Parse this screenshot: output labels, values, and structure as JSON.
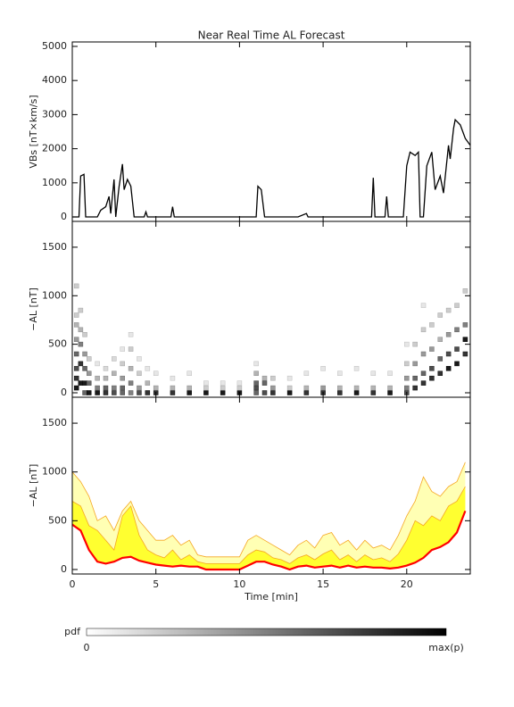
{
  "chart_data": [
    {
      "type": "line",
      "title": "Near Real Time AL Forecast",
      "y_label": "VBs [nT×km/s]",
      "color": "#000000",
      "x": [
        0,
        0.4,
        0.5,
        0.7,
        0.8,
        1.5,
        1.7,
        2,
        2.2,
        2.3,
        2.5,
        2.6,
        2.8,
        3,
        3.1,
        3.3,
        3.5,
        3.7,
        4.3,
        4.4,
        4.5,
        5.9,
        6,
        6.1,
        11,
        11.1,
        11.3,
        11.5,
        13.5,
        14,
        14.1,
        17.9,
        18,
        18.1,
        18.7,
        18.8,
        18.9,
        19.8,
        20,
        20.2,
        20.5,
        20.7,
        20.8,
        21,
        21.2,
        21.5,
        21.7,
        22,
        22.2,
        22.5,
        22.6,
        22.8,
        22.9,
        23.2,
        23.5,
        23.8
      ],
      "values": [
        0,
        0,
        1200,
        1250,
        0,
        0,
        200,
        300,
        600,
        100,
        1100,
        0,
        900,
        1550,
        800,
        1100,
        900,
        0,
        0,
        150,
        0,
        0,
        300,
        0,
        0,
        900,
        800,
        0,
        0,
        100,
        0,
        0,
        1150,
        0,
        0,
        600,
        0,
        0,
        1500,
        1900,
        1800,
        1900,
        0,
        0,
        1500,
        1900,
        800,
        1200,
        700,
        2100,
        1700,
        2600,
        2850,
        2700,
        2300,
        2100
      ],
      "xlim": [
        0,
        23.8
      ],
      "ylim": [
        -130,
        5130
      ],
      "yticks": [
        0,
        1000,
        2000,
        3000,
        4000,
        5000
      ]
    },
    {
      "type": "heatmap",
      "y_label": "−AL [nT]",
      "xlim": [
        0,
        23.8
      ],
      "ylim": [
        -46,
        1766
      ],
      "yticks": [
        0,
        500,
        1000,
        1500
      ],
      "cells": [
        [
          0.25,
          50,
          0.9
        ],
        [
          0.25,
          150,
          0.8
        ],
        [
          0.25,
          250,
          0.7
        ],
        [
          0.25,
          400,
          0.6
        ],
        [
          0.25,
          550,
          0.4
        ],
        [
          0.25,
          700,
          0.3
        ],
        [
          0.25,
          800,
          0.2
        ],
        [
          0.25,
          1100,
          0.2
        ],
        [
          0.5,
          100,
          0.9
        ],
        [
          0.5,
          300,
          0.8
        ],
        [
          0.5,
          500,
          0.5
        ],
        [
          0.5,
          650,
          0.3
        ],
        [
          0.5,
          850,
          0.2
        ],
        [
          0.75,
          0,
          0.6
        ],
        [
          0.75,
          100,
          0.9
        ],
        [
          0.75,
          250,
          0.6
        ],
        [
          0.75,
          400,
          0.4
        ],
        [
          0.75,
          600,
          0.2
        ],
        [
          1,
          0,
          0.9
        ],
        [
          1,
          100,
          0.6
        ],
        [
          1,
          200,
          0.4
        ],
        [
          1,
          350,
          0.2
        ],
        [
          1.5,
          0,
          0.9
        ],
        [
          1.5,
          50,
          0.5
        ],
        [
          1.5,
          150,
          0.3
        ],
        [
          1.5,
          300,
          0.1
        ],
        [
          2,
          0,
          0.8
        ],
        [
          2,
          50,
          0.6
        ],
        [
          2,
          150,
          0.3
        ],
        [
          2,
          250,
          0.15
        ],
        [
          2.5,
          0,
          0.7
        ],
        [
          2.5,
          50,
          0.5
        ],
        [
          2.5,
          200,
          0.3
        ],
        [
          2.5,
          350,
          0.15
        ],
        [
          3,
          0,
          0.6
        ],
        [
          3,
          50,
          0.6
        ],
        [
          3,
          150,
          0.4
        ],
        [
          3,
          300,
          0.2
        ],
        [
          3,
          450,
          0.1
        ],
        [
          3.5,
          0,
          0.5
        ],
        [
          3.5,
          100,
          0.5
        ],
        [
          3.5,
          250,
          0.3
        ],
        [
          3.5,
          450,
          0.2
        ],
        [
          3.5,
          600,
          0.1
        ],
        [
          4,
          0,
          0.7
        ],
        [
          4,
          50,
          0.4
        ],
        [
          4,
          200,
          0.2
        ],
        [
          4,
          350,
          0.1
        ],
        [
          4.5,
          0,
          0.8
        ],
        [
          4.5,
          100,
          0.3
        ],
        [
          4.5,
          250,
          0.1
        ],
        [
          5,
          0,
          0.8
        ],
        [
          5,
          50,
          0.3
        ],
        [
          5,
          200,
          0.1
        ],
        [
          6,
          0,
          0.8
        ],
        [
          6,
          50,
          0.3
        ],
        [
          6,
          150,
          0.1
        ],
        [
          7,
          0,
          0.9
        ],
        [
          7,
          50,
          0.3
        ],
        [
          7,
          200,
          0.1
        ],
        [
          8,
          0,
          0.9
        ],
        [
          8,
          50,
          0.2
        ],
        [
          8,
          100,
          0.1
        ],
        [
          9,
          0,
          0.9
        ],
        [
          9,
          50,
          0.2
        ],
        [
          9,
          100,
          0.1
        ],
        [
          10,
          0,
          0.9
        ],
        [
          10,
          50,
          0.2
        ],
        [
          10,
          100,
          0.1
        ],
        [
          11,
          0,
          0.6
        ],
        [
          11,
          50,
          0.7
        ],
        [
          11,
          100,
          0.6
        ],
        [
          11,
          200,
          0.3
        ],
        [
          11,
          300,
          0.1
        ],
        [
          11.5,
          0,
          0.7
        ],
        [
          11.5,
          100,
          0.6
        ],
        [
          11.5,
          150,
          0.3
        ],
        [
          12,
          0,
          0.8
        ],
        [
          12,
          50,
          0.4
        ],
        [
          12,
          150,
          0.2
        ],
        [
          13,
          0,
          0.9
        ],
        [
          13,
          50,
          0.2
        ],
        [
          13,
          150,
          0.1
        ],
        [
          14,
          0,
          0.8
        ],
        [
          14,
          50,
          0.3
        ],
        [
          14,
          200,
          0.1
        ],
        [
          15,
          0,
          0.8
        ],
        [
          15,
          50,
          0.4
        ],
        [
          15,
          250,
          0.1
        ],
        [
          16,
          0,
          0.8
        ],
        [
          16,
          50,
          0.3
        ],
        [
          16,
          200,
          0.1
        ],
        [
          17,
          0,
          0.9
        ],
        [
          17,
          50,
          0.3
        ],
        [
          17,
          250,
          0.1
        ],
        [
          18,
          0,
          0.8
        ],
        [
          18,
          50,
          0.3
        ],
        [
          18,
          200,
          0.1
        ],
        [
          19,
          0,
          0.9
        ],
        [
          19,
          50,
          0.3
        ],
        [
          19,
          200,
          0.1
        ],
        [
          20,
          0,
          0.7
        ],
        [
          20,
          50,
          0.5
        ],
        [
          20,
          150,
          0.4
        ],
        [
          20,
          300,
          0.2
        ],
        [
          20,
          500,
          0.1
        ],
        [
          20.5,
          50,
          0.8
        ],
        [
          20.5,
          150,
          0.6
        ],
        [
          20.5,
          300,
          0.4
        ],
        [
          20.5,
          500,
          0.2
        ],
        [
          21,
          100,
          0.8
        ],
        [
          21,
          200,
          0.6
        ],
        [
          21,
          400,
          0.4
        ],
        [
          21,
          650,
          0.2
        ],
        [
          21,
          900,
          0.1
        ],
        [
          21.5,
          150,
          0.8
        ],
        [
          21.5,
          250,
          0.7
        ],
        [
          21.5,
          450,
          0.4
        ],
        [
          21.5,
          700,
          0.2
        ],
        [
          22,
          200,
          0.8
        ],
        [
          22,
          350,
          0.6
        ],
        [
          22,
          550,
          0.3
        ],
        [
          22,
          800,
          0.2
        ],
        [
          22.5,
          250,
          0.9
        ],
        [
          22.5,
          400,
          0.7
        ],
        [
          22.5,
          600,
          0.4
        ],
        [
          22.5,
          850,
          0.2
        ],
        [
          23,
          300,
          0.9
        ],
        [
          23,
          450,
          0.7
        ],
        [
          23,
          650,
          0.5
        ],
        [
          23,
          900,
          0.2
        ],
        [
          23.5,
          400,
          0.8
        ],
        [
          23.5,
          550,
          0.9
        ],
        [
          23.5,
          700,
          0.5
        ],
        [
          23.5,
          1050,
          0.2
        ]
      ]
    },
    {
      "type": "band",
      "y_label": "−AL [nT]",
      "x_label": "Time [min]",
      "xlim": [
        0,
        23.8
      ],
      "ylim": [
        -46,
        1766
      ],
      "yticks": [
        0,
        500,
        1000,
        1500
      ],
      "xticks": [
        0,
        5,
        10,
        15,
        20
      ],
      "edge_color": "#f5a623",
      "x": [
        0,
        0.5,
        1,
        1.5,
        2,
        2.5,
        3,
        3.5,
        4,
        4.5,
        5,
        5.5,
        6,
        6.5,
        7,
        7.5,
        8,
        8.5,
        9,
        9.5,
        10,
        10.5,
        11,
        11.5,
        12,
        12.5,
        13,
        13.5,
        14,
        14.5,
        15,
        15.5,
        16,
        16.5,
        17,
        17.5,
        18,
        18.5,
        19,
        19.5,
        20,
        20.5,
        21,
        21.5,
        22,
        22.5,
        23,
        23.5
      ],
      "series": [
        {
          "color": "#ffffb4",
          "values": [
            1000,
            900,
            750,
            500,
            550,
            400,
            600,
            700,
            500,
            400,
            300,
            300,
            350,
            250,
            300,
            150,
            130,
            130,
            130,
            130,
            130,
            300,
            350,
            300,
            250,
            200,
            150,
            250,
            300,
            220,
            350,
            380,
            250,
            300,
            200,
            300,
            220,
            250,
            200,
            350,
            550,
            700,
            950,
            800,
            750,
            850,
            900,
            1100
          ]
        },
        {
          "color": "#ffff30",
          "values": [
            700,
            650,
            450,
            400,
            300,
            200,
            550,
            650,
            350,
            200,
            150,
            120,
            200,
            100,
            150,
            80,
            60,
            60,
            60,
            60,
            60,
            150,
            200,
            180,
            120,
            100,
            60,
            120,
            150,
            100,
            160,
            200,
            100,
            150,
            80,
            150,
            100,
            120,
            80,
            160,
            300,
            500,
            450,
            550,
            500,
            650,
            700,
            850
          ]
        },
        {
          "color": "#ff0000",
          "values": [
            460,
            400,
            200,
            80,
            60,
            80,
            120,
            130,
            90,
            70,
            50,
            40,
            30,
            40,
            30,
            30,
            0,
            0,
            0,
            0,
            0,
            40,
            80,
            80,
            50,
            30,
            0,
            30,
            40,
            20,
            30,
            40,
            20,
            40,
            20,
            30,
            20,
            20,
            10,
            20,
            40,
            70,
            120,
            200,
            230,
            280,
            380,
            600
          ]
        }
      ]
    }
  ],
  "colorbar": {
    "label": "pdf",
    "min_label": "0",
    "max_label": "max(p)"
  }
}
